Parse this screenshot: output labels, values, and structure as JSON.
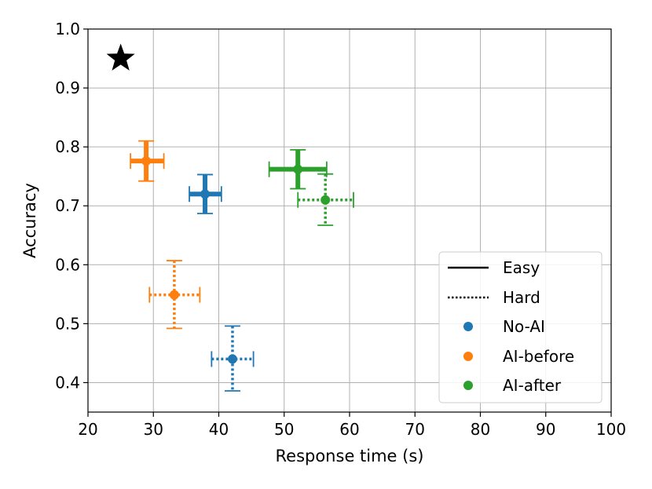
{
  "chart_data": {
    "type": "scatter",
    "title": "",
    "xlabel": "Response time (s)",
    "ylabel": "Accuracy",
    "xlim": [
      20,
      100
    ],
    "ylim": [
      0.35,
      1.0
    ],
    "xticks": [
      20,
      30,
      40,
      50,
      60,
      70,
      80,
      90,
      100
    ],
    "yticks": [
      0.4,
      0.5,
      0.6,
      0.7,
      0.8,
      0.9,
      1.0
    ],
    "xtick_labels": [
      "20",
      "30",
      "40",
      "50",
      "60",
      "70",
      "80",
      "90",
      "100"
    ],
    "ytick_labels": [
      "0.4",
      "0.5",
      "0.6",
      "0.7",
      "0.8",
      "0.9",
      "1.0"
    ],
    "grid": true,
    "legend_position": "lower-right",
    "legend": {
      "styles": [
        {
          "label": "Easy",
          "line": "solid"
        },
        {
          "label": "Hard",
          "line": "dotted"
        }
      ],
      "groups": [
        {
          "label": "No-AI",
          "color": "#1f77b4"
        },
        {
          "label": "AI-before",
          "color": "#ff7f0e"
        },
        {
          "label": "AI-after",
          "color": "#2ca02c"
        }
      ]
    },
    "reference_point": {
      "x": 25,
      "y": 0.95,
      "marker": "star",
      "color": "#000000"
    },
    "series": [
      {
        "group": "No-AI",
        "condition": "Easy",
        "color": "#1f77b4",
        "x": 37.9,
        "y": 0.72,
        "x_err": [
          35.5,
          40.4
        ],
        "y_err": [
          0.687,
          0.753
        ]
      },
      {
        "group": "AI-before",
        "condition": "Easy",
        "color": "#ff7f0e",
        "x": 28.9,
        "y": 0.776,
        "x_err": [
          26.5,
          31.6
        ],
        "y_err": [
          0.742,
          0.81
        ]
      },
      {
        "group": "AI-after",
        "condition": "Easy",
        "color": "#2ca02c",
        "x": 52.1,
        "y": 0.762,
        "x_err": [
          47.7,
          56.5
        ],
        "y_err": [
          0.729,
          0.795
        ]
      },
      {
        "group": "No-AI",
        "condition": "Hard",
        "color": "#1f77b4",
        "x": 42.1,
        "y": 0.44,
        "x_err": [
          38.9,
          45.3
        ],
        "y_err": [
          0.386,
          0.496
        ]
      },
      {
        "group": "AI-before",
        "condition": "Hard",
        "color": "#ff7f0e",
        "x": 33.2,
        "y": 0.549,
        "x_err": [
          29.4,
          37.1
        ],
        "y_err": [
          0.492,
          0.607
        ]
      },
      {
        "group": "AI-after",
        "condition": "Hard",
        "color": "#2ca02c",
        "x": 56.3,
        "y": 0.71,
        "x_err": [
          52.1,
          60.6
        ],
        "y_err": [
          0.667,
          0.754
        ]
      }
    ]
  }
}
